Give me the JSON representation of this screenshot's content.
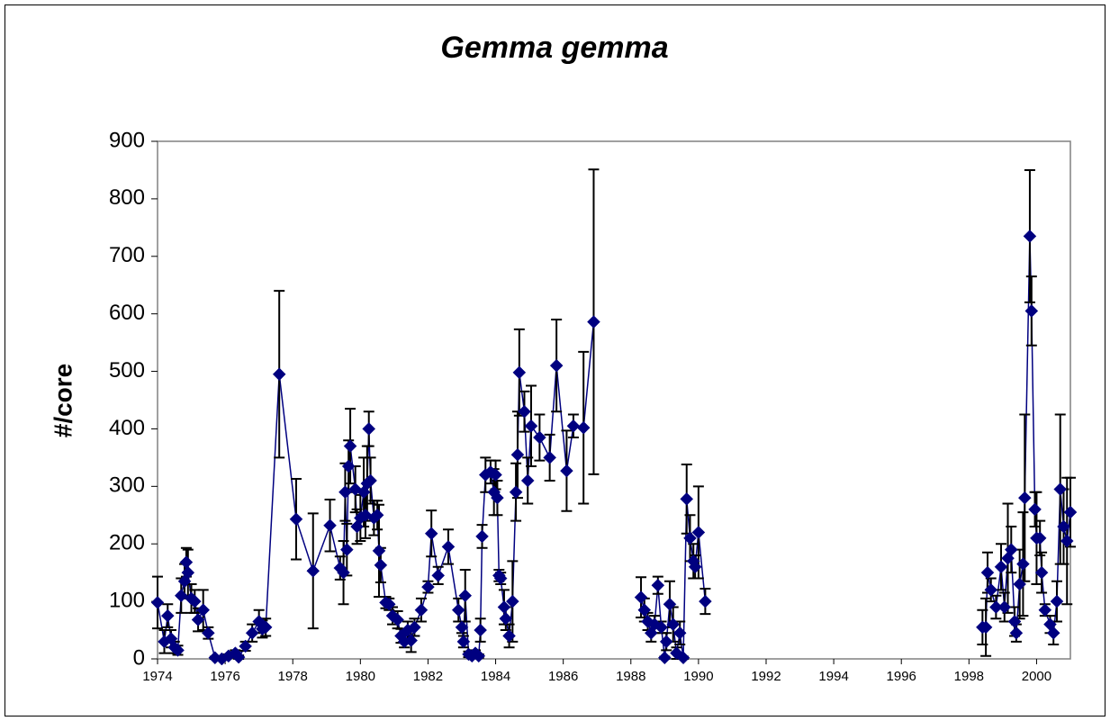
{
  "chart_data": {
    "type": "line",
    "title": "Gemma gemma",
    "y_label": "#/core",
    "x": [
      1974.0,
      1974.2,
      1974.3,
      1974.4,
      1974.5,
      1974.6,
      1974.7,
      1974.8,
      1974.85,
      1974.9,
      1975.0,
      1975.1,
      1975.2,
      1975.35,
      1975.5,
      1975.7,
      1975.9,
      1976.1,
      1976.3,
      1976.4,
      1976.6,
      1976.8,
      1977.0,
      1977.1,
      1977.2,
      1977.6,
      1978.1,
      1978.6,
      1979.1,
      1979.4,
      1979.5,
      1979.55,
      1979.6,
      1979.65,
      1979.7,
      1979.85,
      1979.9,
      1980.0,
      1980.1,
      1980.15,
      1980.2,
      1980.25,
      1980.3,
      1980.4,
      1980.5,
      1980.55,
      1980.6,
      1980.75,
      1980.85,
      1980.95,
      1981.1,
      1981.2,
      1981.3,
      1981.4,
      1981.5,
      1981.6,
      1981.8,
      1982.0,
      1982.1,
      1982.3,
      1982.6,
      1982.9,
      1983.0,
      1983.05,
      1983.1,
      1983.2,
      1983.3,
      1983.4,
      1983.5,
      1983.55,
      1983.6,
      1983.7,
      1983.85,
      1983.95,
      1984.0,
      1984.05,
      1984.1,
      1984.15,
      1984.25,
      1984.3,
      1984.4,
      1984.5,
      1984.6,
      1984.65,
      1984.7,
      1984.85,
      1984.95,
      1985.05,
      1985.3,
      1985.6,
      1985.8,
      1986.1,
      1986.3,
      1986.6,
      1986.9,
      null,
      1988.3,
      1988.4,
      1988.5,
      1988.6,
      1988.7,
      1988.8,
      1988.9,
      1989.0,
      1989.05,
      1989.15,
      1989.25,
      1989.35,
      1989.45,
      1989.55,
      1989.65,
      1989.75,
      1989.85,
      1989.9,
      1990.0,
      1990.2,
      null,
      1998.4,
      1998.5,
      1998.55,
      1998.65,
      1998.8,
      1998.95,
      1999.05,
      1999.15,
      1999.25,
      1999.35,
      1999.4,
      1999.5,
      1999.6,
      1999.65,
      1999.8,
      1999.85,
      1999.95,
      2000.0,
      2000.1,
      2000.15,
      2000.25,
      2000.4,
      2000.5,
      2000.6,
      2000.7,
      2000.8,
      2000.9,
      2001.0
    ],
    "values": [
      98,
      30,
      75,
      35,
      20,
      15,
      110,
      135,
      168,
      150,
      105,
      100,
      68,
      85,
      45,
      2,
      0,
      5,
      10,
      3,
      22,
      45,
      65,
      52,
      55,
      495,
      243,
      153,
      232,
      158,
      150,
      290,
      190,
      335,
      370,
      295,
      230,
      245,
      290,
      250,
      305,
      400,
      310,
      245,
      250,
      188,
      163,
      98,
      95,
      75,
      68,
      40,
      30,
      50,
      32,
      55,
      85,
      125,
      218,
      145,
      195,
      85,
      55,
      30,
      110,
      8,
      5,
      10,
      5,
      50,
      213,
      320,
      325,
      290,
      320,
      280,
      145,
      140,
      90,
      70,
      40,
      100,
      290,
      355,
      498,
      430,
      310,
      405,
      385,
      350,
      510,
      327,
      405,
      402,
      586,
      null,
      107,
      85,
      65,
      45,
      60,
      128,
      55,
      2,
      30,
      95,
      60,
      10,
      45,
      2,
      278,
      210,
      170,
      160,
      220,
      100,
      null,
      55,
      55,
      150,
      120,
      90,
      160,
      90,
      175,
      190,
      65,
      45,
      130,
      165,
      280,
      735,
      605,
      260,
      210,
      210,
      150,
      85,
      60,
      45,
      100,
      295,
      230,
      205,
      255
    ],
    "errors": [
      45,
      20,
      20,
      15,
      10,
      8,
      30,
      30,
      25,
      40,
      25,
      20,
      20,
      35,
      10,
      2,
      2,
      3,
      5,
      3,
      8,
      15,
      20,
      15,
      15,
      145,
      70,
      100,
      45,
      20,
      55,
      50,
      45,
      45,
      65,
      40,
      30,
      40,
      60,
      40,
      65,
      30,
      40,
      30,
      25,
      80,
      30,
      10,
      10,
      15,
      15,
      12,
      10,
      15,
      20,
      15,
      20,
      10,
      40,
      15,
      30,
      20,
      10,
      10,
      45,
      5,
      3,
      5,
      3,
      20,
      20,
      30,
      20,
      40,
      25,
      30,
      10,
      10,
      30,
      20,
      20,
      70,
      50,
      75,
      75,
      35,
      40,
      70,
      40,
      40,
      80,
      70,
      20,
      132,
      265,
      null,
      35,
      20,
      15,
      15,
      15,
      15,
      10,
      2,
      15,
      40,
      30,
      10,
      20,
      2,
      60,
      40,
      30,
      20,
      80,
      22,
      null,
      30,
      50,
      35,
      20,
      20,
      40,
      25,
      95,
      40,
      25,
      15,
      60,
      90,
      145,
      115,
      60,
      30,
      80,
      30,
      35,
      10,
      15,
      20,
      35,
      130,
      65,
      110,
      60
    ],
    "color": "#000080",
    "error_color": "#000000",
    "xlim": [
      1974,
      2001
    ],
    "xticks": [
      1974,
      1976,
      1978,
      1980,
      1982,
      1984,
      1986,
      1988,
      1990,
      1992,
      1994,
      1996,
      1998,
      2000
    ],
    "ylim": [
      0,
      900
    ],
    "yticks": [
      0,
      100,
      200,
      300,
      400,
      500,
      600,
      700,
      800,
      900
    ]
  }
}
